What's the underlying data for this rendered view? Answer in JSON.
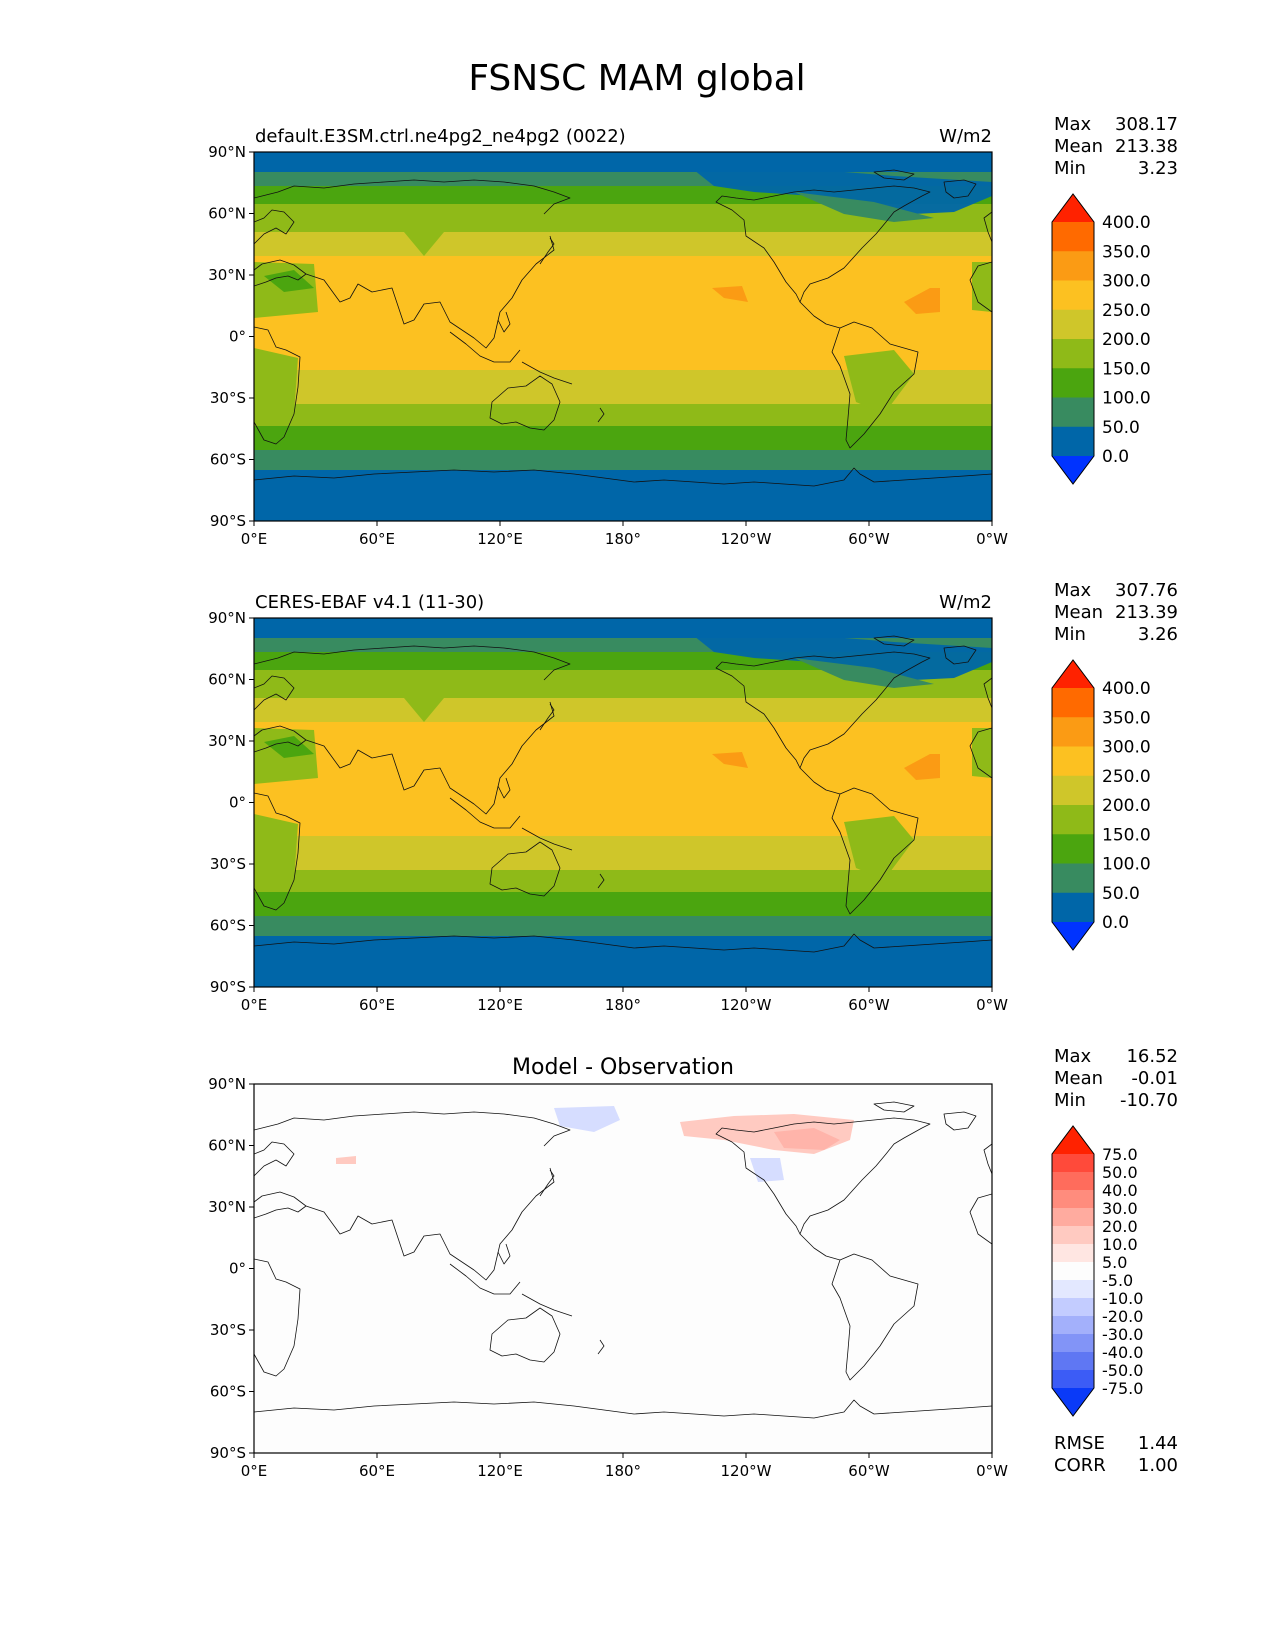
{
  "figure": {
    "title": "FSNSC MAM global"
  },
  "lat_ticks": [
    "90°N",
    "60°N",
    "30°N",
    "0°",
    "30°S",
    "60°S",
    "90°S"
  ],
  "lon_ticks": [
    "0°E",
    "60°E",
    "120°E",
    "180°",
    "120°W",
    "60°W",
    "0°W"
  ],
  "panels": [
    {
      "id": "model",
      "title_left": "default.E3SM.ctrl.ne4pg2_ne4pg2 (0022)",
      "title_center": "",
      "units": "W/m2",
      "stats": [
        {
          "label": "Max",
          "value": "308.17"
        },
        {
          "label": "Mean",
          "value": "213.38"
        },
        {
          "label": "Min",
          "value": "3.23"
        }
      ],
      "colorbar_labels": [
        "400.0",
        "350.0",
        "300.0",
        "250.0",
        "200.0",
        "150.0",
        "100.0",
        "50.0",
        "0.0"
      ],
      "colorbar_colors": [
        "#ff2200",
        "#ff6a00",
        "#fb9b14",
        "#fcc121",
        "#cfc62a",
        "#8fba18",
        "#4ba50f",
        "#388b60",
        "#0066a8",
        "#0033ff"
      ]
    },
    {
      "id": "obs",
      "title_left": "CERES-EBAF v4.1 (11-30)",
      "title_center": "",
      "units": "W/m2",
      "stats": [
        {
          "label": "Max",
          "value": "307.76"
        },
        {
          "label": "Mean",
          "value": "213.39"
        },
        {
          "label": "Min",
          "value": "3.26"
        }
      ],
      "colorbar_labels": [
        "400.0",
        "350.0",
        "300.0",
        "250.0",
        "200.0",
        "150.0",
        "100.0",
        "50.0",
        "0.0"
      ],
      "colorbar_colors": [
        "#ff2200",
        "#ff6a00",
        "#fb9b14",
        "#fcc121",
        "#cfc62a",
        "#8fba18",
        "#4ba50f",
        "#388b60",
        "#0066a8",
        "#0033ff"
      ]
    },
    {
      "id": "diff",
      "title_left": "",
      "title_center": "Model - Observation",
      "units": "",
      "stats": [
        {
          "label": "Max",
          "value": "16.52"
        },
        {
          "label": "Mean",
          "value": "-0.01"
        },
        {
          "label": "Min",
          "value": "-10.70"
        }
      ],
      "colorbar_labels": [
        "75.0",
        "50.0",
        "40.0",
        "30.0",
        "20.0",
        "10.0",
        "5.0",
        "-5.0",
        "-10.0",
        "-20.0",
        "-30.0",
        "-40.0",
        "-50.0",
        "-75.0"
      ],
      "colorbar_colors": [
        "#ff2200",
        "#ff4a3a",
        "#ff6c5c",
        "#ff8c7d",
        "#ffab9f",
        "#ffcac1",
        "#ffe6e2",
        "#fdfdfd",
        "#e3e8ff",
        "#c3ccff",
        "#a3b0fb",
        "#8294f7",
        "#5f77f3",
        "#3c5cf6",
        "#0a3af8"
      ],
      "metrics": [
        {
          "label": "RMSE",
          "value": "1.44"
        },
        {
          "label": "CORR",
          "value": "1.00"
        }
      ]
    }
  ],
  "field_colors": {
    "polar": "#0066a8",
    "band_100": "#388b60",
    "band_150": "#4ba50f",
    "band_200": "#8fba18",
    "band_250": "#cfc62a",
    "band_300": "#fcc121",
    "band_350": "#fb9b14",
    "diff_pos": "#ffcac1",
    "diff_neg": "#d6ddff"
  }
}
